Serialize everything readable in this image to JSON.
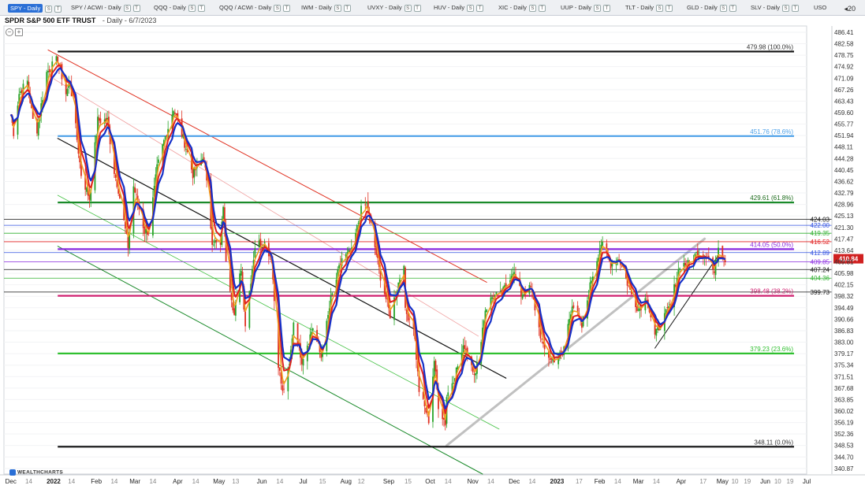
{
  "tabs": [
    {
      "label": "SPY - Daily",
      "active": true
    },
    {
      "label": "SPY / ACWI - Daily",
      "active": false
    },
    {
      "label": "QQQ - Daily",
      "active": false
    },
    {
      "label": "QQQ / ACWI - Daily",
      "active": false
    },
    {
      "label": "IWM - Daily",
      "active": false
    },
    {
      "label": "UVXY - Daily",
      "active": false
    },
    {
      "label": "HUV - Daily",
      "active": false
    },
    {
      "label": "XIC - Daily",
      "active": false
    },
    {
      "label": "UUP - Daily",
      "active": false
    },
    {
      "label": "TLT - Daily",
      "active": false
    },
    {
      "label": "GLD - Daily",
      "active": false
    },
    {
      "label": "SLV - Daily",
      "active": false
    },
    {
      "label": "USO",
      "active": false
    }
  ],
  "tab_mini_s": "S",
  "tab_mini_t": "T",
  "more_tabs": "20",
  "header": {
    "symbol": "SPDR S&P 500 ETF TRUST",
    "subtitle": "- Daily - 6/7/2023"
  },
  "logo": "WEALTHCHARTS",
  "colors": {
    "ma_fast": "#f0a020",
    "ma_mid": "#e02020",
    "ma_slow": "#1530c8",
    "up": "#28a428",
    "down": "#e03020",
    "price_label_bg": "#d02020"
  },
  "chart_data": {
    "type": "line",
    "ylim": [
      339.0,
      488.5
    ],
    "yticks": [
      "486.41",
      "482.58",
      "478.75",
      "474.92",
      "471.09",
      "467.26",
      "463.43",
      "459.60",
      "455.77",
      "451.94",
      "448.11",
      "444.28",
      "440.45",
      "436.62",
      "432.79",
      "428.96",
      "425.13",
      "421.30",
      "417.47",
      "413.64",
      "409.81",
      "405.98",
      "402.15",
      "398.32",
      "394.49",
      "390.66",
      "386.83",
      "383.00",
      "379.17",
      "375.34",
      "371.51",
      "367.68",
      "363.85",
      "360.02",
      "356.19",
      "352.36",
      "348.53",
      "344.70",
      "340.87"
    ],
    "yticks_pos_key": "ticks from 486.41 step -3.83",
    "xaxis_labels": [
      {
        "label": "Dec",
        "date": "2021-12-01"
      },
      {
        "label": "14",
        "date": "2021-12-14"
      },
      {
        "label": "2022",
        "date": "2022-01-01"
      },
      {
        "label": "14",
        "date": "2022-01-14"
      },
      {
        "label": "Feb",
        "date": "2022-02-01"
      },
      {
        "label": "14",
        "date": "2022-02-14"
      },
      {
        "label": "Mar",
        "date": "2022-03-01"
      },
      {
        "label": "14",
        "date": "2022-03-14"
      },
      {
        "label": "Apr",
        "date": "2022-04-01"
      },
      {
        "label": "14",
        "date": "2022-04-14"
      },
      {
        "label": "May",
        "date": "2022-05-01"
      },
      {
        "label": "13",
        "date": "2022-05-13"
      },
      {
        "label": "Jun",
        "date": "2022-06-01"
      },
      {
        "label": "14",
        "date": "2022-06-14"
      },
      {
        "label": "Jul",
        "date": "2022-07-01"
      },
      {
        "label": "15",
        "date": "2022-07-15"
      },
      {
        "label": "Aug",
        "date": "2022-08-01"
      },
      {
        "label": "12",
        "date": "2022-08-12"
      },
      {
        "label": "Sep",
        "date": "2022-09-01"
      },
      {
        "label": "15",
        "date": "2022-09-15"
      },
      {
        "label": "Oct",
        "date": "2022-10-01"
      },
      {
        "label": "14",
        "date": "2022-10-14"
      },
      {
        "label": "Nov",
        "date": "2022-11-01"
      },
      {
        "label": "14",
        "date": "2022-11-14"
      },
      {
        "label": "Dec",
        "date": "2022-12-01"
      },
      {
        "label": "14",
        "date": "2022-12-14"
      },
      {
        "label": "2023",
        "date": "2023-01-01"
      },
      {
        "label": "17",
        "date": "2023-01-17"
      },
      {
        "label": "Feb",
        "date": "2023-02-01"
      },
      {
        "label": "14",
        "date": "2023-02-14"
      },
      {
        "label": "Mar",
        "date": "2023-03-01"
      },
      {
        "label": "14",
        "date": "2023-03-14"
      },
      {
        "label": "Apr",
        "date": "2023-04-01"
      },
      {
        "label": "17",
        "date": "2023-04-17"
      },
      {
        "label": "May",
        "date": "2023-05-01"
      },
      {
        "label": "10",
        "date": "2023-05-10"
      },
      {
        "label": "19",
        "date": "2023-05-19"
      },
      {
        "label": "Jun",
        "date": "2023-06-01"
      },
      {
        "label": "10",
        "date": "2023-06-10"
      },
      {
        "label": "19",
        "date": "2023-06-19"
      },
      {
        "label": "Jul",
        "date": "2023-07-01"
      }
    ],
    "xlim": [
      "2021-11-26",
      "2023-07-01"
    ],
    "fib_levels": [
      {
        "value": 479.98,
        "label": "479.98 (100.0%)",
        "color": "#111111",
        "text_color": "#333333",
        "start": "2022-01-04",
        "width": 2.2
      },
      {
        "value": 451.76,
        "label": "451.76 (78.6%)",
        "color": "#4a9fe8",
        "text_color": "#4a9fe8",
        "start": "2022-01-04",
        "width": 2.2
      },
      {
        "value": 429.61,
        "label": "429.61 (61.8%)",
        "color": "#1a8a2a",
        "text_color": "#1a6a1a",
        "start": "2022-01-04",
        "width": 2.2
      },
      {
        "value": 414.05,
        "label": "414.05 (50.0%)",
        "color": "#8a2ae0",
        "text_color": "#8a2ae0",
        "start": "2022-01-04",
        "width": 2.2
      },
      {
        "value": 398.48,
        "label": "398.48 (38.2%)",
        "color": "#d02070",
        "text_color": "#d02070",
        "start": "2022-01-04",
        "width": 2.2
      },
      {
        "value": 379.23,
        "label": "379.23 (23.6%)",
        "color": "#30c030",
        "text_color": "#30c030",
        "start": "2022-01-04",
        "width": 2.2
      },
      {
        "value": 348.11,
        "label": "348.11 (0.0%)",
        "color": "#111111",
        "text_color": "#333333",
        "start": "2022-01-04",
        "width": 2.2
      }
    ],
    "price_levels": [
      {
        "value": 424.03,
        "label": "424.03",
        "color": "#111111",
        "text_color": "#111111"
      },
      {
        "value": 422.0,
        "label": "422.00",
        "color": "#3050e0",
        "text_color": "#3050e0"
      },
      {
        "value": 419.35,
        "label": "419.35",
        "color": "#30b030",
        "text_color": "#30b030"
      },
      {
        "value": 416.52,
        "label": "416.52",
        "color": "#e02020",
        "text_color": "#e02020"
      },
      {
        "value": 412.89,
        "label": "412.89",
        "color": "#3050e0",
        "text_color": "#3050e0"
      },
      {
        "value": 409.85,
        "label": "409.85",
        "color": "#8a2ae0",
        "text_color": "#8a2ae0"
      },
      {
        "value": 407.24,
        "label": "407.24",
        "color": "#111111",
        "text_color": "#111111"
      },
      {
        "value": 404.36,
        "label": "404.36",
        "color": "#30b030",
        "text_color": "#30b030"
      },
      {
        "value": 399.73,
        "label": "399.73",
        "color": "#111111",
        "text_color": "#111111"
      }
    ],
    "last_price": {
      "value": 410.84,
      "label": "410.84"
    },
    "trendlines": [
      {
        "from": [
          "2021-12-28",
          480.5
        ],
        "to": [
          "2022-11-11",
          403.0
        ],
        "color": "#e03020",
        "width": 1.0
      },
      {
        "from": [
          "2021-12-28",
          472.0
        ],
        "to": [
          "2022-11-05",
          385.0
        ],
        "color": "#f0a0a0",
        "width": 0.8
      },
      {
        "from": [
          "2022-01-04",
          451.0
        ],
        "to": [
          "2022-11-25",
          371.0
        ],
        "color": "#111111",
        "width": 1.2
      },
      {
        "from": [
          "2022-01-04",
          432.0
        ],
        "to": [
          "2022-11-20",
          354.0
        ],
        "color": "#40c040",
        "width": 0.8
      },
      {
        "from": [
          "2022-01-04",
          415.0
        ],
        "to": [
          "2022-11-08",
          339.0
        ],
        "color": "#1a8a2a",
        "width": 1.0
      },
      {
        "from": [
          "2022-10-13",
          348.5
        ],
        "to": [
          "2023-04-18",
          417.5
        ],
        "color": "#c0c0c0",
        "width": 3.0
      },
      {
        "from": [
          "2023-03-13",
          381.0
        ],
        "to": [
          "2023-04-28",
          412.0
        ],
        "color": "#111111",
        "width": 1.0
      }
    ],
    "series": [
      {
        "name": "price",
        "anchors": [
          [
            "2021-12-01",
            459.0
          ],
          [
            "2021-12-03",
            453.0
          ],
          [
            "2021-12-07",
            466.0
          ],
          [
            "2021-12-13",
            470.0
          ],
          [
            "2021-12-17",
            457.0
          ],
          [
            "2021-12-20",
            454.0
          ],
          [
            "2021-12-27",
            473.0
          ],
          [
            "2022-01-04",
            477.5
          ],
          [
            "2022-01-10",
            466.0
          ],
          [
            "2022-01-13",
            470.0
          ],
          [
            "2022-01-21",
            439.0
          ],
          [
            "2022-01-27",
            431.0
          ],
          [
            "2022-02-02",
            457.0
          ],
          [
            "2022-02-09",
            457.0
          ],
          [
            "2022-02-14",
            440.0
          ],
          [
            "2022-02-17",
            434.0
          ],
          [
            "2022-02-24",
            415.0
          ],
          [
            "2022-02-28",
            435.0
          ],
          [
            "2022-03-08",
            420.0
          ],
          [
            "2022-03-11",
            420.0
          ],
          [
            "2022-03-17",
            441.0
          ],
          [
            "2022-03-22",
            450.0
          ],
          [
            "2022-03-29",
            461.0
          ],
          [
            "2022-04-07",
            448.0
          ],
          [
            "2022-04-12",
            439.0
          ],
          [
            "2022-04-20",
            445.0
          ],
          [
            "2022-04-26",
            417.0
          ],
          [
            "2022-05-02",
            415.0
          ],
          [
            "2022-05-04",
            429.0
          ],
          [
            "2022-05-06",
            411.0
          ],
          [
            "2022-05-12",
            392.0
          ],
          [
            "2022-05-17",
            408.0
          ],
          [
            "2022-05-20",
            389.0
          ],
          [
            "2022-05-27",
            415.0
          ],
          [
            "2022-06-02",
            417.0
          ],
          [
            "2022-06-08",
            411.0
          ],
          [
            "2022-06-13",
            376.0
          ],
          [
            "2022-06-16",
            366.0
          ],
          [
            "2022-06-21",
            375.0
          ],
          [
            "2022-06-24",
            390.0
          ],
          [
            "2022-06-30",
            377.0
          ],
          [
            "2022-07-08",
            388.0
          ],
          [
            "2022-07-14",
            378.0
          ],
          [
            "2022-07-21",
            397.0
          ],
          [
            "2022-07-29",
            411.0
          ],
          [
            "2022-08-05",
            413.0
          ],
          [
            "2022-08-12",
            427.0
          ],
          [
            "2022-08-16",
            429.0
          ],
          [
            "2022-08-19",
            422.0
          ],
          [
            "2022-08-26",
            405.0
          ],
          [
            "2022-09-02",
            392.0
          ],
          [
            "2022-09-12",
            410.0
          ],
          [
            "2022-09-13",
            393.0
          ],
          [
            "2022-09-19",
            389.0
          ],
          [
            "2022-09-23",
            367.0
          ],
          [
            "2022-09-30",
            357.0
          ],
          [
            "2022-10-04",
            377.0
          ],
          [
            "2022-10-07",
            362.0
          ],
          [
            "2022-10-13",
            365.0
          ],
          [
            "2022-10-12",
            356.0
          ],
          [
            "2022-10-18",
            371.0
          ],
          [
            "2022-10-26",
            382.0
          ],
          [
            "2022-11-03",
            372.0
          ],
          [
            "2022-11-10",
            394.0
          ],
          [
            "2022-11-15",
            398.0
          ],
          [
            "2022-11-22",
            399.0
          ],
          [
            "2022-11-30",
            407.0
          ],
          [
            "2022-12-06",
            399.0
          ],
          [
            "2022-12-13",
            401.0
          ],
          [
            "2022-12-22",
            381.0
          ],
          [
            "2022-12-28",
            377.0
          ],
          [
            "2023-01-05",
            379.0
          ],
          [
            "2023-01-12",
            396.0
          ],
          [
            "2023-01-19",
            388.0
          ],
          [
            "2023-01-26",
            404.0
          ],
          [
            "2023-02-02",
            416.0
          ],
          [
            "2023-02-09",
            409.0
          ],
          [
            "2023-02-15",
            411.0
          ],
          [
            "2023-02-23",
            400.0
          ],
          [
            "2023-03-01",
            394.0
          ],
          [
            "2023-03-07",
            398.0
          ],
          [
            "2023-03-13",
            385.0
          ],
          [
            "2023-03-17",
            389.0
          ],
          [
            "2023-03-24",
            395.0
          ],
          [
            "2023-03-31",
            409.0
          ],
          [
            "2023-04-06",
            409.0
          ],
          [
            "2023-04-13",
            413.0
          ],
          [
            "2023-04-20",
            412.0
          ],
          [
            "2023-04-25",
            406.0
          ],
          [
            "2023-04-28",
            415.0
          ],
          [
            "2023-05-03",
            410.84
          ]
        ]
      }
    ]
  }
}
